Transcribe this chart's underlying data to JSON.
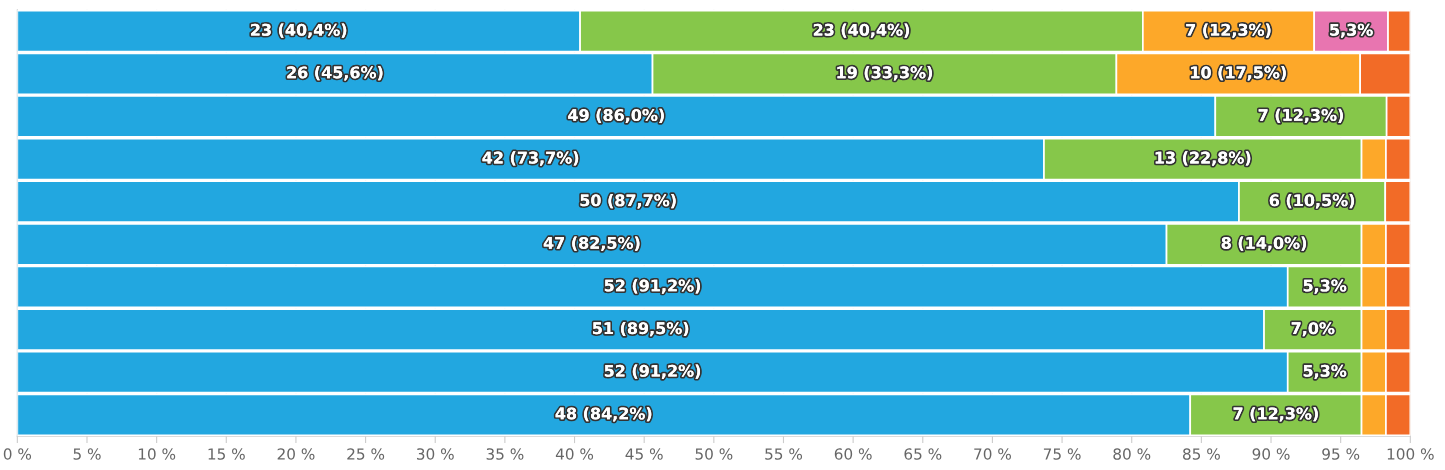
{
  "chart_data": {
    "type": "bar",
    "orientation": "horizontal",
    "stacked": true,
    "grid": "x",
    "legend": false,
    "categories": [
      null,
      null,
      null,
      null,
      null,
      null,
      null,
      null,
      null,
      null
    ],
    "xlim": [
      0,
      100
    ],
    "xticks": [
      {
        "value": 0,
        "label": "0 %"
      },
      {
        "value": 5,
        "label": "5 %"
      },
      {
        "value": 10,
        "label": "10 %"
      },
      {
        "value": 15,
        "label": "15 %"
      },
      {
        "value": 20,
        "label": "20 %"
      },
      {
        "value": 25,
        "label": "25 %"
      },
      {
        "value": 30,
        "label": "30 %"
      },
      {
        "value": 35,
        "label": "35 %"
      },
      {
        "value": 40,
        "label": "40 %"
      },
      {
        "value": 45,
        "label": "45 %"
      },
      {
        "value": 50,
        "label": "50 %"
      },
      {
        "value": 55,
        "label": "55 %"
      },
      {
        "value": 60,
        "label": "60 %"
      },
      {
        "value": 65,
        "label": "65 %"
      },
      {
        "value": 70,
        "label": "70 %"
      },
      {
        "value": 75,
        "label": "75 %"
      },
      {
        "value": 80,
        "label": "80 %"
      },
      {
        "value": 85,
        "label": "85 %"
      },
      {
        "value": 90,
        "label": "90 %"
      },
      {
        "value": 95,
        "label": "95 %"
      },
      {
        "value": 100,
        "label": "100 %"
      }
    ],
    "series": [
      {
        "color": "#22a7e0",
        "values": [
          40.4,
          45.6,
          86.0,
          73.7,
          87.7,
          82.5,
          91.2,
          89.5,
          91.2,
          84.2
        ],
        "value_labels": [
          "23 (40,4%)",
          "26 (45,6%)",
          "49 (86,0%)",
          "42 (73,7%)",
          "50 (87,7%)",
          "47 (82,5%)",
          "52 (91,2%)",
          "51 (89,5%)",
          "52 (91,2%)",
          "48 (84,2%)"
        ]
      },
      {
        "color": "#86c74a",
        "values": [
          40.4,
          33.3,
          12.3,
          22.8,
          10.5,
          14.0,
          5.3,
          7.0,
          5.3,
          12.3
        ],
        "value_labels": [
          "23 (40,4%)",
          "19 (33,3%)",
          "7 (12,3%)",
          "13 (22,8%)",
          "6 (10,5%)",
          "8 (14,0%)",
          "5,3%",
          "7,0%",
          "5,3%",
          "7 (12,3%)"
        ]
      },
      {
        "color": "#fda829",
        "values": [
          12.3,
          17.5,
          null,
          1.75,
          null,
          1.75,
          1.75,
          1.75,
          1.75,
          1.75
        ],
        "value_labels": [
          "7 (12,3%)",
          "10 (17,5%)",
          null,
          null,
          null,
          null,
          null,
          null,
          null,
          null
        ]
      },
      {
        "color": "#e875b0",
        "values": [
          5.3,
          null,
          null,
          null,
          null,
          null,
          null,
          null,
          null,
          null
        ],
        "value_labels": [
          "5,3%",
          null,
          null,
          null,
          null,
          null,
          null,
          null,
          null,
          null
        ]
      },
      {
        "color": "#f26b27",
        "values": [
          1.6,
          3.6,
          1.7,
          1.75,
          1.8,
          1.75,
          1.75,
          1.75,
          1.75,
          1.75
        ]
      }
    ]
  }
}
